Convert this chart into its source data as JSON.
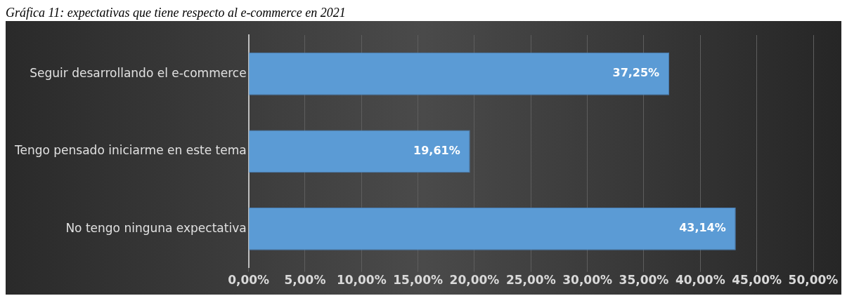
{
  "chart_data": {
    "type": "bar",
    "orientation": "horizontal",
    "title": "Gráfica 11: expectativas que tiene respecto al e-commerce en 2021",
    "categories": [
      "Seguir desarrollando el e-commerce",
      "Tengo pensado iniciarme en este tema",
      "No tengo ninguna expectativa"
    ],
    "values": [
      37.25,
      19.61,
      43.14
    ],
    "color": "#5b9bd5",
    "value_labels": [
      "37,25%",
      "19,61%",
      "43,14%"
    ],
    "xlim": [
      0,
      50
    ],
    "xticks": [
      {
        "value": 0,
        "label": "0,00%"
      },
      {
        "value": 5,
        "label": "5,00%"
      },
      {
        "value": 10,
        "label": "10,00%"
      },
      {
        "value": 15,
        "label": "15,00%"
      },
      {
        "value": 20,
        "label": "20,00%"
      },
      {
        "value": 25,
        "label": "25,00%"
      },
      {
        "value": 30,
        "label": "30,00%"
      },
      {
        "value": 35,
        "label": "35,00%"
      },
      {
        "value": 40,
        "label": "40,00%"
      },
      {
        "value": 45,
        "label": "45,00%"
      },
      {
        "value": 50,
        "label": "50,00%"
      }
    ],
    "grid": "x",
    "legend": false
  }
}
